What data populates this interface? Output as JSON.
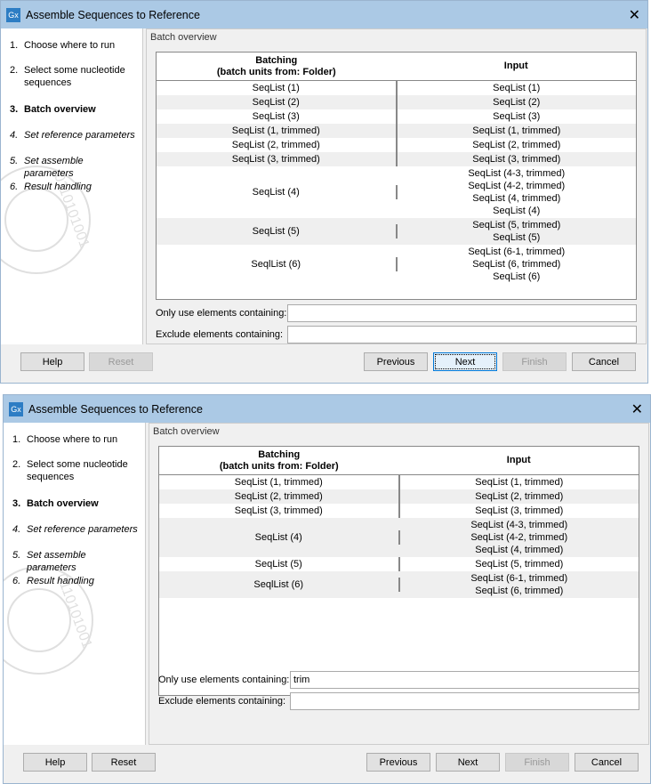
{
  "dialogs": [
    {
      "title": "Assemble Sequences to Reference",
      "steps": [
        {
          "n": "1.",
          "label": "Choose where to run",
          "style": ""
        },
        {
          "n": "2.",
          "label": "Select some nucleotide sequences",
          "style": ""
        },
        {
          "n": "3.",
          "label": "Batch overview",
          "style": "bold"
        },
        {
          "n": "4.",
          "label": "Set reference parameters",
          "style": "ital"
        },
        {
          "n": "5.",
          "label": "Set assemble parameters",
          "style": "ital"
        },
        {
          "n": "6.",
          "label": "Result handling",
          "style": "ital"
        }
      ],
      "section": "Batch overview",
      "headers": [
        "Batching\n(batch units from: Folder)",
        "Input"
      ],
      "rows": [
        {
          "batch": "SeqList (1)",
          "input": [
            "SeqList (1)"
          ]
        },
        {
          "batch": "SeqList (2)",
          "input": [
            "SeqList (2)"
          ]
        },
        {
          "batch": "SeqList (3)",
          "input": [
            "SeqList (3)"
          ]
        },
        {
          "batch": "SeqList (1, trimmed)",
          "input": [
            "SeqList (1, trimmed)"
          ]
        },
        {
          "batch": "SeqList (2, trimmed)",
          "input": [
            "SeqList (2, trimmed)"
          ]
        },
        {
          "batch": "SeqList (3, trimmed)",
          "input": [
            "SeqList (3, trimmed)"
          ]
        },
        {
          "batch": "SeqList (4)",
          "input": [
            "SeqList (4-3, trimmed)",
            "SeqList (4-2, trimmed)",
            "SeqList (4, trimmed)",
            "SeqList (4)"
          ]
        },
        {
          "batch": "SeqList (5)",
          "input": [
            "SeqList (5, trimmed)",
            "SeqList (5)"
          ]
        },
        {
          "batch": "SeqlList (6)",
          "input": [
            "SeqList (6-1, trimmed)",
            "SeqList (6, trimmed)",
            "SeqList (6)"
          ]
        }
      ],
      "only_label": "Only use elements containing:",
      "only_value": "",
      "exclude_label": "Exclude elements containing:",
      "exclude_value": "",
      "buttons": [
        {
          "label": "Help",
          "state": "normal"
        },
        {
          "label": "Reset",
          "state": "disabled"
        },
        {
          "label": "Previous",
          "state": "normal"
        },
        {
          "label": "Next",
          "state": "focused"
        },
        {
          "label": "Finish",
          "state": "disabled"
        },
        {
          "label": "Cancel",
          "state": "normal"
        }
      ]
    },
    {
      "title": "Assemble Sequences to Reference",
      "steps": [
        {
          "n": "1.",
          "label": "Choose where to run",
          "style": ""
        },
        {
          "n": "2.",
          "label": "Select some nucleotide sequences",
          "style": ""
        },
        {
          "n": "3.",
          "label": "Batch overview",
          "style": "bold"
        },
        {
          "n": "4.",
          "label": "Set reference parameters",
          "style": "ital"
        },
        {
          "n": "5.",
          "label": "Set assemble parameters",
          "style": "ital"
        },
        {
          "n": "6.",
          "label": "Result handling",
          "style": "ital"
        }
      ],
      "section": "Batch overview",
      "headers": [
        "Batching\n(batch units from: Folder)",
        "Input"
      ],
      "rows": [
        {
          "batch": "SeqList (1, trimmed)",
          "input": [
            "SeqList (1, trimmed)"
          ]
        },
        {
          "batch": "SeqList (2, trimmed)",
          "input": [
            "SeqList (2, trimmed)"
          ]
        },
        {
          "batch": "SeqList (3, trimmed)",
          "input": [
            "SeqList (3, trimmed)"
          ]
        },
        {
          "batch": "SeqList (4)",
          "input": [
            "SeqList (4-3, trimmed)",
            "SeqList (4-2, trimmed)",
            "SeqList (4, trimmed)"
          ]
        },
        {
          "batch": "SeqList (5)",
          "input": [
            "SeqList (5, trimmed)"
          ]
        },
        {
          "batch": "SeqlList (6)",
          "input": [
            "SeqList (6-1, trimmed)",
            "SeqList (6, trimmed)"
          ]
        }
      ],
      "only_label": "Only use elements containing:",
      "only_value": "trim",
      "exclude_label": "Exclude elements containing:",
      "exclude_value": "",
      "buttons": [
        {
          "label": "Help",
          "state": "normal"
        },
        {
          "label": "Reset",
          "state": "normal"
        },
        {
          "label": "Previous",
          "state": "normal"
        },
        {
          "label": "Next",
          "state": "normal"
        },
        {
          "label": "Finish",
          "state": "disabled"
        },
        {
          "label": "Cancel",
          "state": "normal"
        }
      ]
    }
  ],
  "colors": {
    "titlebar": "#abc9e5",
    "logo": "#2d7dc4",
    "focus": "#0078d7"
  }
}
